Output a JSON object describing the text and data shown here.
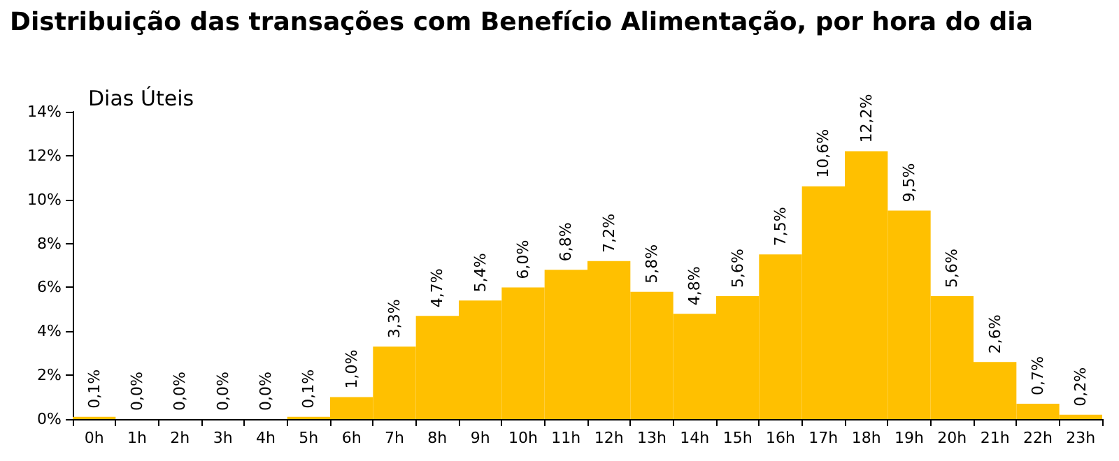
{
  "chart_data": {
    "type": "bar",
    "title": "Distribuição das transações com Benefício Alimentação, por hora do dia",
    "subtitle": "Dias Úteis",
    "categories": [
      "0h",
      "1h",
      "2h",
      "3h",
      "4h",
      "5h",
      "6h",
      "7h",
      "8h",
      "9h",
      "10h",
      "11h",
      "12h",
      "13h",
      "14h",
      "15h",
      "16h",
      "17h",
      "18h",
      "19h",
      "20h",
      "21h",
      "22h",
      "23h"
    ],
    "values": [
      0.1,
      0.0,
      0.0,
      0.0,
      0.0,
      0.1,
      1.0,
      3.3,
      4.7,
      5.4,
      6.0,
      6.8,
      7.2,
      5.8,
      4.8,
      5.6,
      7.5,
      10.6,
      12.2,
      9.5,
      5.6,
      2.6,
      0.7,
      0.2
    ],
    "value_labels": [
      "0,1%",
      "0,0%",
      "0,0%",
      "0,0%",
      "0,0%",
      "0,1%",
      "1,0%",
      "3,3%",
      "4,7%",
      "5,4%",
      "6,0%",
      "6,8%",
      "7,2%",
      "5,8%",
      "4,8%",
      "5,6%",
      "7,5%",
      "10,6%",
      "12,2%",
      "9,5%",
      "5,6%",
      "2,6%",
      "0,7%",
      "0,2%"
    ],
    "color": "#ffc000",
    "ylim": [
      0,
      14
    ],
    "yticks": [
      {
        "value": 0,
        "label": "0%"
      },
      {
        "value": 2,
        "label": "2%"
      },
      {
        "value": 4,
        "label": "4%"
      },
      {
        "value": 6,
        "label": "6%"
      },
      {
        "value": 8,
        "label": "8%"
      },
      {
        "value": 10,
        "label": "10%"
      },
      {
        "value": 12,
        "label": "12%"
      },
      {
        "value": 14,
        "label": "14%"
      }
    ],
    "grid": false
  }
}
